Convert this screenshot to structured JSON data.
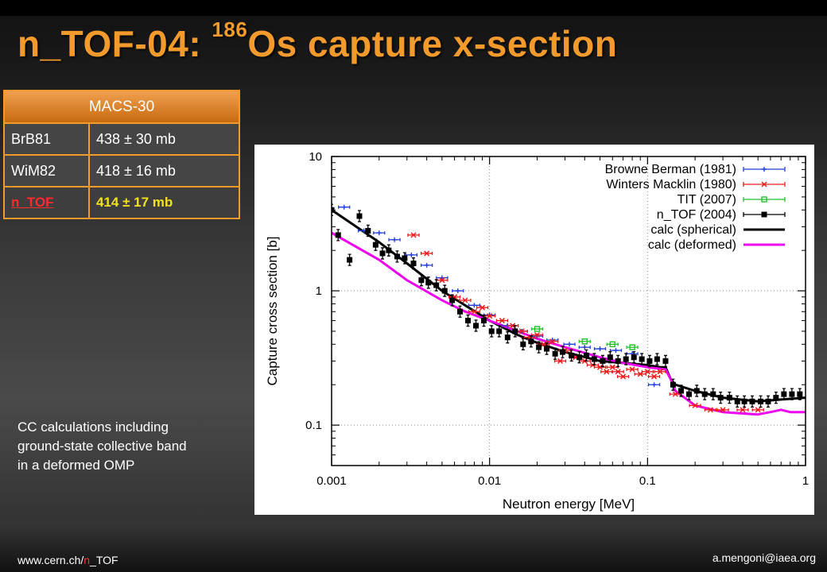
{
  "slide": {
    "title_prefix": "n_TOF-04: ",
    "title_sup": "186",
    "title_suffix": "Os capture x-section"
  },
  "table": {
    "header": "MACS-30",
    "rows": [
      {
        "label": "BrB81",
        "value": "438 ± 30 mb",
        "highlight": false
      },
      {
        "label": "WiM82",
        "value": "418 ± 16 mb",
        "highlight": false
      },
      {
        "label": "n_TOF",
        "value": "414 ± 17 mb",
        "highlight": true
      }
    ]
  },
  "note": {
    "lines": [
      "CC calculations including",
      "ground-state collective band",
      "in a deformed OMP"
    ]
  },
  "footer": {
    "left_pre": "www.cern.ch/",
    "left_red": "n",
    "left_post": "_TOF",
    "right": "a.mengoni@iaea.org"
  },
  "colors": {
    "title": "#f39a2c",
    "table_border": "#f39a2c",
    "browne": "#1f3fd8",
    "winters": "#ee1c1c",
    "tit": "#22c02a",
    "ntof": "#000000",
    "spherical": "#000000",
    "deformed": "#ee00ee"
  },
  "chart_data": {
    "type": "scatter",
    "xlabel": "Neutron energy [MeV]",
    "ylabel": "Capture cross section [b]",
    "xscale": "log",
    "yscale": "log",
    "xlim": [
      0.001,
      1
    ],
    "ylim": [
      0.05,
      10
    ],
    "xticks": [
      0.001,
      0.01,
      0.1,
      1
    ],
    "xtick_labels": [
      "0.001",
      "0.01",
      "0.1",
      "1"
    ],
    "yticks": [
      0.1,
      1,
      10
    ],
    "ytick_labels": [
      "0.1",
      "1",
      "10"
    ],
    "grid": "dotted",
    "legend_position": "top-right",
    "series": [
      {
        "name": "Browne  Berman (1981)",
        "color_key": "browne",
        "style": "errorbar",
        "marker": "plus",
        "x": [
          0.0012,
          0.0016,
          0.002,
          0.0025,
          0.0032,
          0.004,
          0.005,
          0.0063,
          0.008,
          0.01,
          0.013,
          0.016,
          0.02,
          0.025,
          0.032,
          0.04,
          0.05,
          0.063,
          0.08,
          0.11
        ],
        "y": [
          4.2,
          2.8,
          2.7,
          2.4,
          1.85,
          1.55,
          1.25,
          1.0,
          0.78,
          0.66,
          0.55,
          0.5,
          0.46,
          0.43,
          0.4,
          0.38,
          0.37,
          0.36,
          0.34,
          0.2
        ]
      },
      {
        "name": "Winters  Macklin (1980)",
        "color_key": "winters",
        "style": "errorbar",
        "marker": "x",
        "x": [
          0.0033,
          0.004,
          0.005,
          0.006,
          0.007,
          0.008,
          0.009,
          0.01,
          0.012,
          0.014,
          0.016,
          0.018,
          0.02,
          0.022,
          0.025,
          0.028,
          0.03,
          0.035,
          0.04,
          0.045,
          0.05,
          0.055,
          0.06,
          0.065,
          0.07,
          0.08,
          0.09,
          0.1,
          0.11,
          0.12,
          0.15,
          0.2,
          0.25,
          0.3,
          0.4,
          0.5
        ],
        "y": [
          2.6,
          1.9,
          1.2,
          0.9,
          0.85,
          0.7,
          0.75,
          0.65,
          0.6,
          0.55,
          0.5,
          0.45,
          0.47,
          0.4,
          0.42,
          0.3,
          0.36,
          0.32,
          0.3,
          0.28,
          0.27,
          0.25,
          0.27,
          0.25,
          0.23,
          0.26,
          0.24,
          0.25,
          0.23,
          0.25,
          0.17,
          0.14,
          0.13,
          0.13,
          0.13,
          0.13
        ]
      },
      {
        "name": "TIT (2007)",
        "color_key": "tit",
        "style": "errorbar",
        "marker": "square",
        "x": [
          0.02,
          0.04,
          0.06,
          0.08
        ],
        "y": [
          0.52,
          0.42,
          0.4,
          0.38
        ]
      },
      {
        "name": "n_TOF (2004)",
        "color_key": "ntof",
        "style": "errorbar",
        "marker": "filled-square",
        "x": [
          0.001,
          0.0011,
          0.0013,
          0.0015,
          0.0017,
          0.0019,
          0.0021,
          0.0023,
          0.0026,
          0.0029,
          0.0033,
          0.0037,
          0.0041,
          0.0046,
          0.0052,
          0.0058,
          0.0065,
          0.0073,
          0.0082,
          0.0092,
          0.0103,
          0.0115,
          0.013,
          0.0145,
          0.0163,
          0.0183,
          0.0205,
          0.023,
          0.026,
          0.029,
          0.033,
          0.037,
          0.041,
          0.046,
          0.052,
          0.058,
          0.065,
          0.073,
          0.082,
          0.092,
          0.103,
          0.115,
          0.13,
          0.145,
          0.163,
          0.183,
          0.205,
          0.23,
          0.26,
          0.29,
          0.33,
          0.37,
          0.41,
          0.46,
          0.52,
          0.58,
          0.65,
          0.73,
          0.82,
          0.92
        ],
        "y": [
          4.0,
          2.6,
          1.7,
          3.6,
          2.8,
          2.2,
          1.9,
          2.0,
          1.8,
          1.75,
          1.6,
          1.2,
          1.15,
          1.1,
          1.0,
          0.85,
          0.7,
          0.6,
          0.55,
          0.6,
          0.5,
          0.5,
          0.45,
          0.5,
          0.4,
          0.42,
          0.38,
          0.37,
          0.34,
          0.35,
          0.33,
          0.32,
          0.33,
          0.31,
          0.3,
          0.32,
          0.3,
          0.31,
          0.32,
          0.31,
          0.3,
          0.31,
          0.3,
          0.2,
          0.18,
          0.17,
          0.18,
          0.17,
          0.17,
          0.16,
          0.16,
          0.15,
          0.15,
          0.15,
          0.15,
          0.15,
          0.16,
          0.17,
          0.17,
          0.17
        ]
      },
      {
        "name": "calc (spherical)",
        "color_key": "spherical",
        "style": "line",
        "x": [
          0.001,
          0.002,
          0.003,
          0.005,
          0.007,
          0.01,
          0.015,
          0.02,
          0.03,
          0.05,
          0.07,
          0.1,
          0.12,
          0.13,
          0.14,
          0.15,
          0.2,
          0.3,
          0.5,
          0.7,
          1.0
        ],
        "y": [
          4.0,
          2.3,
          1.6,
          1.0,
          0.78,
          0.6,
          0.47,
          0.41,
          0.35,
          0.3,
          0.29,
          0.28,
          0.27,
          0.27,
          0.22,
          0.2,
          0.18,
          0.16,
          0.15,
          0.155,
          0.16
        ]
      },
      {
        "name": "calc (deformed)",
        "color_key": "deformed",
        "style": "line",
        "x": [
          0.001,
          0.002,
          0.003,
          0.005,
          0.007,
          0.01,
          0.015,
          0.02,
          0.03,
          0.05,
          0.07,
          0.1,
          0.13,
          0.14,
          0.15,
          0.2,
          0.3,
          0.5,
          0.6,
          0.7,
          0.8,
          1.0
        ],
        "y": [
          2.7,
          1.7,
          1.2,
          0.85,
          0.7,
          0.6,
          0.5,
          0.44,
          0.38,
          0.32,
          0.29,
          0.27,
          0.26,
          0.22,
          0.18,
          0.14,
          0.125,
          0.12,
          0.125,
          0.13,
          0.125,
          0.125
        ]
      }
    ]
  }
}
